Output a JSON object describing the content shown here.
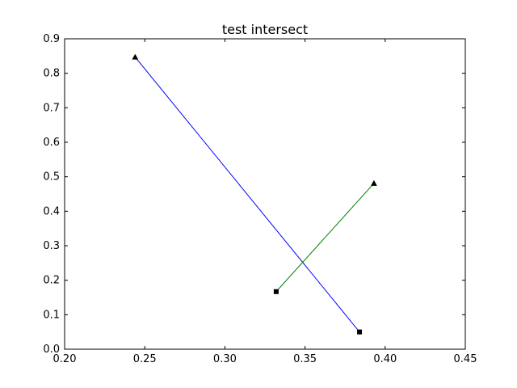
{
  "chart_data": {
    "type": "line",
    "title": "test intersect",
    "xlabel": "",
    "ylabel": "",
    "xlim": [
      0.2,
      0.45
    ],
    "ylim": [
      0.0,
      0.9
    ],
    "xticks": [
      0.2,
      0.25,
      0.3,
      0.35,
      0.4,
      0.45
    ],
    "xtick_labels": [
      "0.20",
      "0.25",
      "0.30",
      "0.35",
      "0.40",
      "0.45"
    ],
    "yticks": [
      0.0,
      0.1,
      0.2,
      0.3,
      0.4,
      0.5,
      0.6,
      0.7,
      0.8,
      0.9
    ],
    "ytick_labels": [
      "0.0",
      "0.1",
      "0.2",
      "0.3",
      "0.4",
      "0.5",
      "0.6",
      "0.7",
      "0.8",
      "0.9"
    ],
    "grid": false,
    "series": [
      {
        "color": "#0000ff",
        "points": [
          {
            "x": 0.244,
            "y": 0.847
          },
          {
            "x": 0.384,
            "y": 0.05
          }
        ],
        "start_marker": "triangle",
        "end_marker": "square"
      },
      {
        "color": "#008000",
        "points": [
          {
            "x": 0.332,
            "y": 0.167
          },
          {
            "x": 0.393,
            "y": 0.481
          }
        ],
        "start_marker": "square",
        "end_marker": "triangle"
      }
    ]
  }
}
